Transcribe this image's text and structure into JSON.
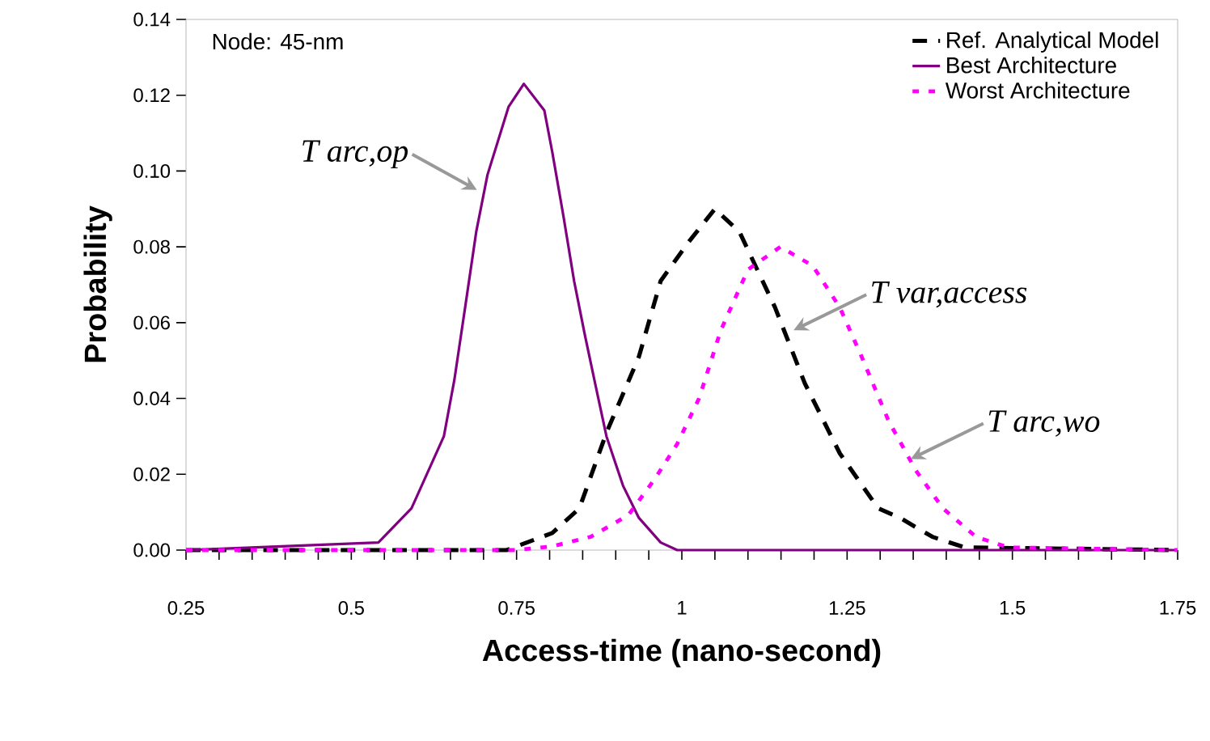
{
  "chart_data": {
    "type": "line",
    "xlabel": "Access-time (nano-second)",
    "ylabel": "Probability",
    "xlim": [
      0.25,
      1.75
    ],
    "xticks": [
      0.25,
      0.5,
      0.75,
      1,
      1.25,
      1.5,
      1.75
    ],
    "ylim": [
      0,
      0.14
    ],
    "yticks": [
      {
        "value": 0,
        "label": "0.00"
      },
      {
        "value": 0.02,
        "label": "0.02"
      },
      {
        "value": 0.04,
        "label": "0.04"
      },
      {
        "value": 0.06,
        "label": "0.06"
      },
      {
        "value": 0.08,
        "label": "0.08"
      },
      {
        "value": 0.1,
        "label": "0.10"
      },
      {
        "value": 0.12,
        "label": "0.12"
      },
      {
        "value": 0.14,
        "label": "0.14"
      }
    ],
    "legend": "top right",
    "grid": false,
    "series": [
      {
        "name": "Ref. Analytical Model",
        "color": "#000000",
        "line_style": "dashed",
        "x": [
          0.25,
          0.735,
          0.804,
          0.845,
          0.886,
          0.935,
          0.968,
          1.009,
          1.05,
          1.087,
          1.141,
          1.186,
          1.239,
          1.297,
          1.33,
          1.379,
          1.428,
          1.75
        ],
        "values": [
          0,
          0,
          0.0045,
          0.011,
          0.031,
          0.051,
          0.071,
          0.081,
          0.09,
          0.084,
          0.064,
          0.044,
          0.0255,
          0.011,
          0.0085,
          0.0035,
          0.0007,
          0
        ]
      },
      {
        "name": "Best Architecture",
        "color": "#800080",
        "line_style": "solid",
        "x": [
          0.25,
          0.541,
          0.591,
          0.64,
          0.656,
          0.673,
          0.689,
          0.706,
          0.722,
          0.738,
          0.761,
          0.792,
          0.804,
          0.821,
          0.837,
          0.853,
          0.87,
          0.886,
          0.911,
          0.935,
          0.968,
          0.993,
          1.75
        ],
        "values": [
          0,
          0.002,
          0.011,
          0.03,
          0.045,
          0.065,
          0.084,
          0.099,
          0.108,
          0.117,
          0.123,
          0.116,
          0.105,
          0.088,
          0.071,
          0.057,
          0.043,
          0.03,
          0.017,
          0.0085,
          0.002,
          0,
          0
        ]
      },
      {
        "name": "Worst Architecture",
        "color": "#ff00ff",
        "line_style": "dotted",
        "x": [
          0.25,
          0.75,
          0.804,
          0.862,
          0.919,
          0.96,
          0.993,
          1.026,
          1.059,
          1.1,
          1.149,
          1.198,
          1.239,
          1.272,
          1.313,
          1.354,
          1.395,
          1.445,
          1.494,
          1.75
        ],
        "values": [
          0,
          0,
          0.001,
          0.0035,
          0.0092,
          0.019,
          0.028,
          0.04,
          0.058,
          0.074,
          0.08,
          0.075,
          0.064,
          0.051,
          0.034,
          0.021,
          0.011,
          0.0035,
          0.0007,
          0
        ]
      }
    ],
    "annotations": [
      "Node: 45-nm",
      {
        "text": "T arc,op",
        "x": 0.69,
        "y": 0.095
      },
      {
        "text": "T var,access",
        "x": 1.169,
        "y": 0.058
      },
      {
        "text": "T arc,wo",
        "x": 1.346,
        "y": 0.024
      }
    ]
  }
}
